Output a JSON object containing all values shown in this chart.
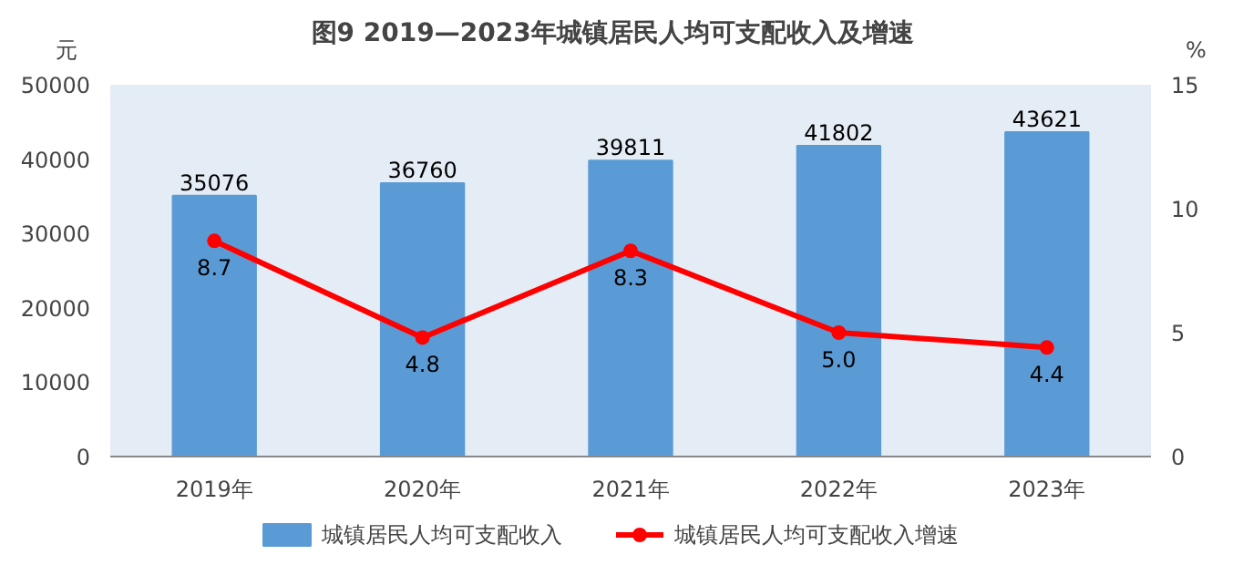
{
  "chart_data": {
    "type": "bar",
    "title": "图9  2019—2023年城镇居民人均可支配收入及增速",
    "ylabel": "元",
    "y2label": "%",
    "categories": [
      "2019年",
      "2020年",
      "2021年",
      "2022年",
      "2023年"
    ],
    "series": [
      {
        "name": "城镇居民人均可支配收入",
        "color": "#5b9bd5",
        "values": [
          35076,
          36760,
          39811,
          41802,
          43621
        ]
      },
      {
        "name": "城镇居民人均可支配收入增速",
        "type": "line",
        "axis": "y2",
        "color": "#ff0000",
        "marker": "circle",
        "values": [
          8.7,
          4.8,
          8.3,
          5.0,
          4.4
        ],
        "value_labels": [
          "8.7",
          "4.8",
          "8.3",
          "5.0",
          "4.4"
        ]
      }
    ],
    "ylim": [
      0,
      50000
    ],
    "yticks": [
      0,
      10000,
      20000,
      30000,
      40000,
      50000
    ],
    "y2lim": [
      0,
      15
    ],
    "y2ticks": [
      0,
      5,
      10,
      15
    ],
    "data_labels": true,
    "legend": "bottom",
    "grid": false
  }
}
